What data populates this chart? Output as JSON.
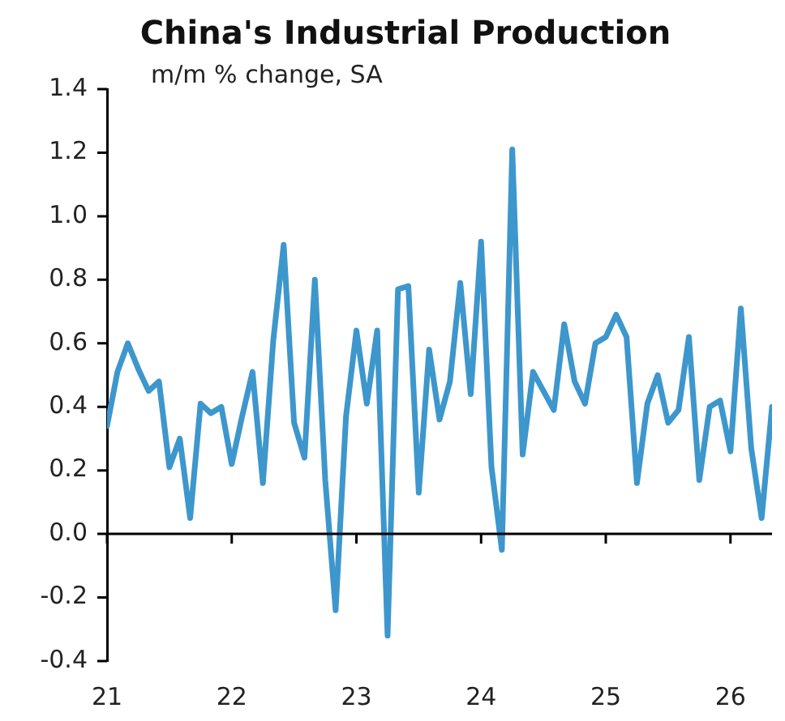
{
  "chart_data": {
    "type": "line",
    "title": "China's Industrial Production",
    "subtitle": "m/m % change, SA",
    "x": [
      "2021-01",
      "2021-02",
      "2021-03",
      "2021-04",
      "2021-05",
      "2021-06",
      "2021-07",
      "2021-08",
      "2021-09",
      "2021-10",
      "2021-11",
      "2021-12",
      "2022-01",
      "2022-02",
      "2022-03",
      "2022-04",
      "2022-05",
      "2022-06",
      "2022-07",
      "2022-08",
      "2022-09",
      "2022-10",
      "2022-11",
      "2022-12",
      "2023-01",
      "2023-02",
      "2023-03",
      "2023-04",
      "2023-05",
      "2023-06",
      "2023-07",
      "2023-08",
      "2023-09",
      "2023-10",
      "2023-11",
      "2023-12",
      "2024-01",
      "2024-02",
      "2024-03",
      "2024-04",
      "2024-05",
      "2024-06",
      "2024-07",
      "2024-08",
      "2024-09",
      "2024-10",
      "2024-11",
      "2024-12",
      "2025-01",
      "2025-02",
      "2025-03",
      "2025-04",
      "2025-05",
      "2025-06",
      "2025-07",
      "2025-08",
      "2025-09",
      "2025-10",
      "2025-11",
      "2025-12",
      "2026-01",
      "2026-02",
      "2026-03",
      "2026-04",
      "2026-05"
    ],
    "series": [
      {
        "color": "#3d97cc",
        "values": [
          0.34,
          0.51,
          0.6,
          0.52,
          0.45,
          0.48,
          0.21,
          0.3,
          0.05,
          0.41,
          0.38,
          0.4,
          0.22,
          0.37,
          0.51,
          0.16,
          0.61,
          0.91,
          0.35,
          0.24,
          0.8,
          0.17,
          -0.24,
          0.37,
          0.64,
          0.41,
          0.64,
          -0.32,
          0.77,
          0.78,
          0.13,
          0.58,
          0.36,
          0.48,
          0.79,
          0.44,
          0.92,
          0.21,
          -0.05,
          1.21,
          0.25,
          0.51,
          0.45,
          0.39,
          0.66,
          0.48,
          0.41,
          0.6,
          0.62,
          0.69,
          0.62,
          0.16,
          0.41,
          0.5,
          0.35,
          0.39,
          0.62,
          0.17,
          0.4,
          0.42,
          0.26,
          0.71,
          0.27,
          0.05,
          0.4
        ]
      }
    ],
    "xlim": [
      "2021-01",
      "2026-05"
    ],
    "xticks": [
      {
        "value": "2021-01",
        "label": "21"
      },
      {
        "value": "2022-01",
        "label": "22"
      },
      {
        "value": "2023-01",
        "label": "23"
      },
      {
        "value": "2024-01",
        "label": "24"
      },
      {
        "value": "2025-01",
        "label": "25"
      },
      {
        "value": "2026-01",
        "label": "26"
      }
    ],
    "ylim": [
      -0.4,
      1.4
    ],
    "yticks": [
      {
        "value": -0.4,
        "label": "-0.4"
      },
      {
        "value": -0.2,
        "label": "-0.2"
      },
      {
        "value": 0,
        "label": "0.0"
      },
      {
        "value": 0.2,
        "label": "0.2"
      },
      {
        "value": 0.4,
        "label": "0.4"
      },
      {
        "value": 0.6,
        "label": "0.6"
      },
      {
        "value": 0.8,
        "label": "0.8"
      },
      {
        "value": 1,
        "label": "1.0"
      },
      {
        "value": 1.2,
        "label": "1.2"
      },
      {
        "value": 1.4,
        "label": "1.4"
      }
    ],
    "ref_lines": [
      {
        "axis": "y",
        "value": 0,
        "color": "#000000",
        "line_style": "solid"
      }
    ],
    "grid": false,
    "legend": false,
    "marker": "none",
    "line_style": "solid"
  }
}
